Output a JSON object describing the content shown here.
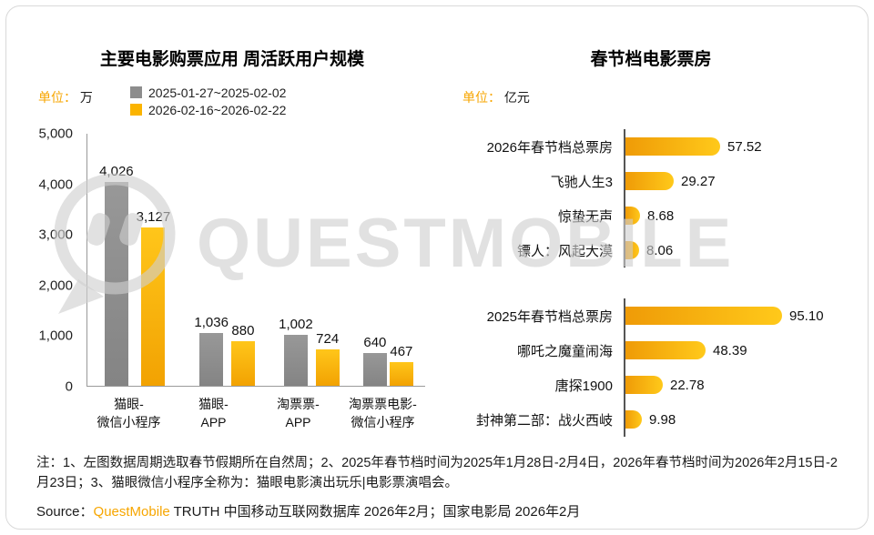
{
  "watermark": {
    "text": "QUESTMOBILE"
  },
  "left": {
    "title": "主要电影购票应用 周活跃用户规模",
    "unit_label": "单位：",
    "unit_value": "万",
    "legend": [
      {
        "label": "2025-01-27~2025-02-02"
      },
      {
        "label": "2026-02-16~2026-02-22"
      }
    ]
  },
  "right": {
    "title": "春节档电影票房",
    "unit_label": "单位：",
    "unit_value": "亿元"
  },
  "footer": {
    "note": "注：1、左图数据周期选取春节假期所在自然周；2、2025年春节档时间为2025年1月28日-2月4日，2026年春节档时间为2026年2月15日-2月23日；3、猫眼微信小程序全称为：猫眼电影演出玩乐|电影票演唱会。",
    "source_label": "Source：",
    "source_brand": "QuestMobile",
    "source_rest": " TRUTH 中国移动互联网数据库 2026年2月；国家电影局 2026年2月"
  },
  "colors": {
    "gray": "#8d8d8d",
    "gold": "#fbb400",
    "accent_orange": "#f7a600"
  },
  "chart_data": [
    {
      "type": "bar",
      "title": "主要电影购票应用 周活跃用户规模",
      "ylabel": "万",
      "ylim": [
        0,
        5000
      ],
      "y_ticks": [
        "5,000",
        "4,000",
        "3,000",
        "2,000",
        "1,000",
        "0"
      ],
      "legend_position": "top",
      "grid": false,
      "categories": [
        "猫眼-微信小程序",
        "猫眼-APP",
        "淘票票-APP",
        "淘票票电影-微信小程序"
      ],
      "categories_lines": [
        [
          "猫眼-",
          "微信小程序"
        ],
        [
          "猫眼-",
          "APP"
        ],
        [
          "淘票票-",
          "APP"
        ],
        [
          "淘票票电影-",
          "微信小程序"
        ]
      ],
      "series": [
        {
          "name": "2025-01-27~2025-02-02",
          "color": "#8d8d8d",
          "values": [
            4026,
            1036,
            1002,
            640
          ],
          "labels": [
            "4,026",
            "1,036",
            "1,002",
            "640"
          ]
        },
        {
          "name": "2026-02-16~2026-02-22",
          "color": "#fbb400",
          "values": [
            3127,
            880,
            724,
            467
          ],
          "labels": [
            "3,127",
            "880",
            "724",
            "467"
          ]
        }
      ]
    },
    {
      "type": "bar",
      "orientation": "horizontal",
      "title": "春节档电影票房",
      "xlabel": "亿元",
      "xmax": 95.1,
      "groups": [
        {
          "rows": [
            {
              "label": "2026年春节档总票房",
              "value": 57.52,
              "display": "57.52"
            },
            {
              "label": "飞驰人生3",
              "value": 29.27,
              "display": "29.27"
            },
            {
              "label": "惊蛰无声",
              "value": 8.68,
              "display": "8.68"
            },
            {
              "label": "镖人：风起大漠",
              "value": 8.06,
              "display": "8.06"
            }
          ]
        },
        {
          "rows": [
            {
              "label": "2025年春节档总票房",
              "value": 95.1,
              "display": "95.10"
            },
            {
              "label": "哪吒之魔童闹海",
              "value": 48.39,
              "display": "48.39"
            },
            {
              "label": "唐探1900",
              "value": 22.78,
              "display": "22.78"
            },
            {
              "label": "封神第二部：战火西岐",
              "value": 9.98,
              "display": "9.98"
            }
          ]
        }
      ]
    }
  ]
}
